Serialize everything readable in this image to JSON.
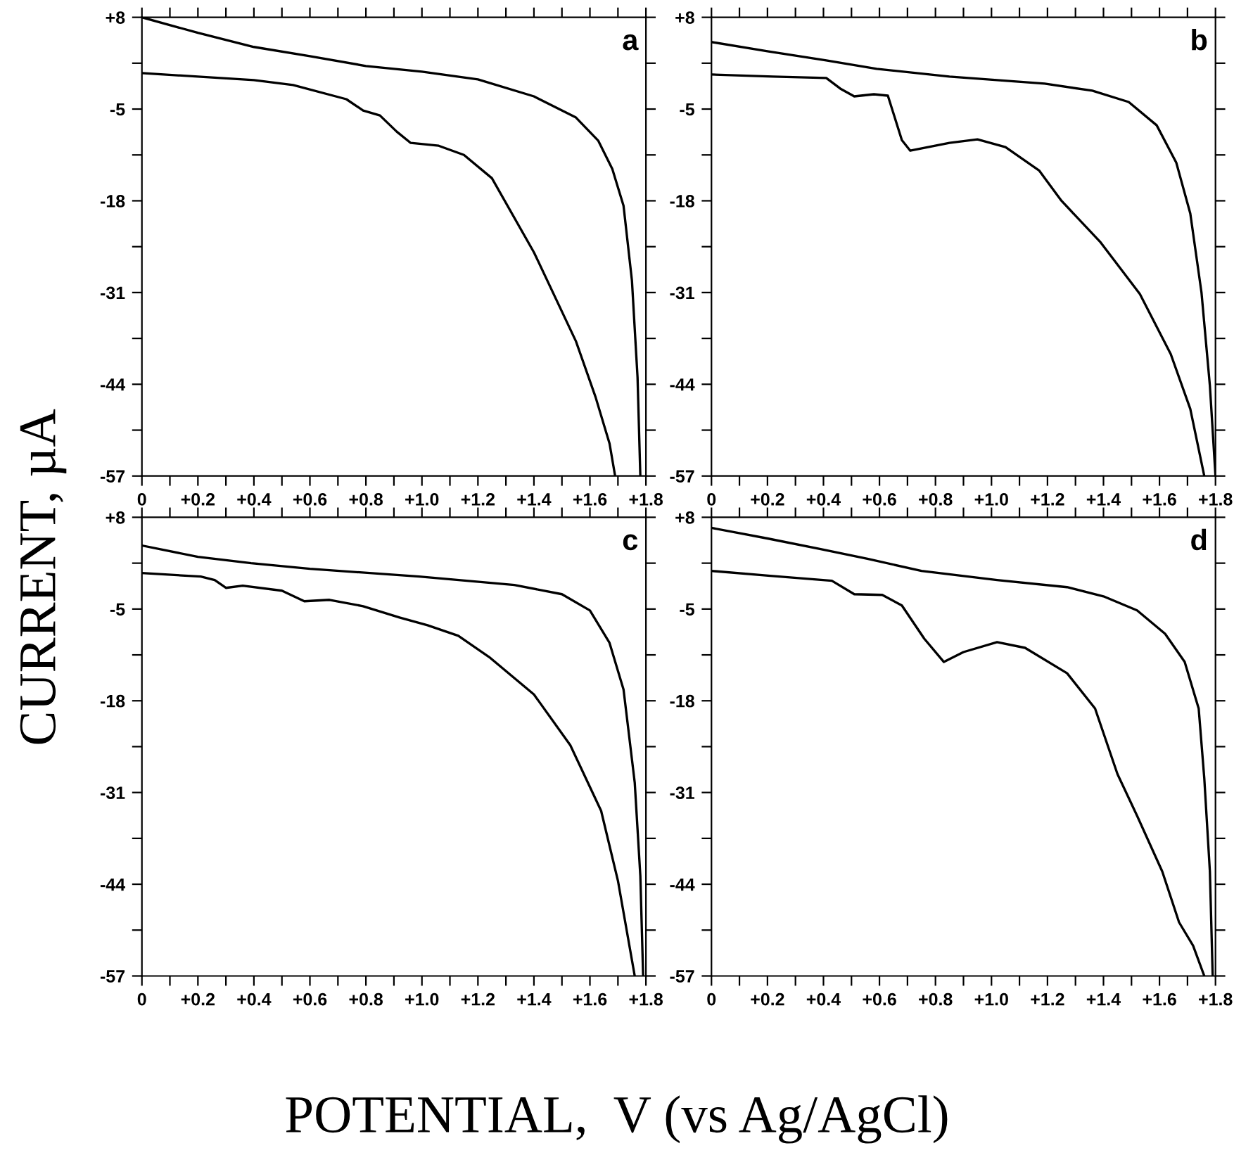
{
  "chart_data": [
    {
      "type": "line",
      "annotations": [
        "a"
      ],
      "ylabel": "CURRENT, µA",
      "xlim": [
        0,
        1.8
      ],
      "ylim": [
        -57,
        8
      ],
      "grid": false,
      "legend": false,
      "marker": "none",
      "line_style": "solid",
      "xticks": [
        {
          "value": 0,
          "label": "0"
        },
        {
          "value": 0.1,
          "label": null
        },
        {
          "value": 0.2,
          "label": "+0.2"
        },
        {
          "value": 0.3,
          "label": null
        },
        {
          "value": 0.4,
          "label": "+0.4"
        },
        {
          "value": 0.5,
          "label": null
        },
        {
          "value": 0.6,
          "label": "+0.6"
        },
        {
          "value": 0.7,
          "label": null
        },
        {
          "value": 0.8,
          "label": "+0.8"
        },
        {
          "value": 0.9,
          "label": null
        },
        {
          "value": 1.0,
          "label": "+1.0"
        },
        {
          "value": 1.1,
          "label": null
        },
        {
          "value": 1.2,
          "label": "+1.2"
        },
        {
          "value": 1.3,
          "label": null
        },
        {
          "value": 1.4,
          "label": "+1.4"
        },
        {
          "value": 1.5,
          "label": null
        },
        {
          "value": 1.6,
          "label": "+1.6"
        },
        {
          "value": 1.7,
          "label": null
        },
        {
          "value": 1.8,
          "label": "+1.8"
        }
      ],
      "yticks": [
        {
          "value": 8,
          "label": "+8"
        },
        {
          "value": 1.5,
          "label": null
        },
        -5,
        {
          "value": -11.5,
          "label": null
        },
        -18,
        {
          "value": -24.5,
          "label": null
        },
        -31,
        {
          "value": -37.5,
          "label": null
        },
        -44,
        {
          "value": -50.5,
          "label": null
        },
        -57
      ],
      "series": [
        {
          "color": "#000000",
          "x": [
            0,
            0.2,
            0.4,
            0.6,
            0.8,
            1.0,
            1.2,
            1.4,
            1.55,
            1.63,
            1.68,
            1.72,
            1.75,
            1.77,
            1.78
          ],
          "values": [
            8,
            5.8,
            3.8,
            2.5,
            1.1,
            0.3,
            -0.8,
            -3.2,
            -6.2,
            -9.5,
            -13.5,
            -18.7,
            -29.3,
            -43,
            -57
          ]
        },
        {
          "color": "#000000",
          "x": [
            0,
            0.2,
            0.4,
            0.54,
            0.73,
            0.79,
            0.85,
            0.91,
            0.96,
            1.06,
            1.15,
            1.25,
            1.4,
            1.55,
            1.62,
            1.67,
            1.69
          ],
          "values": [
            0.1,
            -0.4,
            -0.9,
            -1.6,
            -3.6,
            -5.2,
            -5.9,
            -8.2,
            -9.8,
            -10.2,
            -11.5,
            -14.8,
            -25.3,
            -37.9,
            -45.8,
            -52.4,
            -57
          ]
        }
      ]
    },
    {
      "type": "line",
      "annotations": [
        "b"
      ],
      "xlim": [
        0,
        1.8
      ],
      "ylim": [
        -57,
        8
      ],
      "grid": false,
      "legend": false,
      "marker": "none",
      "line_style": "solid",
      "xticks": [
        {
          "value": 0,
          "label": "0"
        },
        {
          "value": 0.1,
          "label": null
        },
        {
          "value": 0.2,
          "label": "+0.2"
        },
        {
          "value": 0.3,
          "label": null
        },
        {
          "value": 0.4,
          "label": "+0.4"
        },
        {
          "value": 0.5,
          "label": null
        },
        {
          "value": 0.6,
          "label": "+0.6"
        },
        {
          "value": 0.7,
          "label": null
        },
        {
          "value": 0.8,
          "label": "+0.8"
        },
        {
          "value": 0.9,
          "label": null
        },
        {
          "value": 1.0,
          "label": "+1.0"
        },
        {
          "value": 1.1,
          "label": null
        },
        {
          "value": 1.2,
          "label": "+1.2"
        },
        {
          "value": 1.3,
          "label": null
        },
        {
          "value": 1.4,
          "label": "+1.4"
        },
        {
          "value": 1.5,
          "label": null
        },
        {
          "value": 1.6,
          "label": "+1.6"
        },
        {
          "value": 1.7,
          "label": null
        },
        {
          "value": 1.8,
          "label": "+1.8"
        }
      ],
      "yticks": [
        {
          "value": 8,
          "label": "+8"
        },
        {
          "value": 1.5,
          "label": null
        },
        -5,
        {
          "value": -11.5,
          "label": null
        },
        -18,
        {
          "value": -24.5,
          "label": null
        },
        -31,
        {
          "value": -37.5,
          "label": null
        },
        -44,
        {
          "value": -50.5,
          "label": null
        },
        -57
      ],
      "series": [
        {
          "color": "#000000",
          "x": [
            0,
            0.2,
            0.41,
            0.59,
            0.85,
            1.19,
            1.36,
            1.49,
            1.59,
            1.66,
            1.71,
            1.75,
            1.78,
            1.8
          ],
          "values": [
            4.5,
            3.2,
            1.9,
            0.7,
            -0.4,
            -1.4,
            -2.4,
            -4.0,
            -7.3,
            -12.6,
            -19.8,
            -31,
            -44.2,
            -57
          ]
        },
        {
          "color": "#000000",
          "x": [
            0,
            0.22,
            0.41,
            0.46,
            0.51,
            0.58,
            0.63,
            0.68,
            0.71,
            0.85,
            0.95,
            1.05,
            1.17,
            1.25,
            1.39,
            1.53,
            1.64,
            1.71,
            1.76
          ],
          "values": [
            -0.1,
            -0.4,
            -0.6,
            -2.1,
            -3.2,
            -2.9,
            -3.1,
            -9.4,
            -10.9,
            -9.8,
            -9.3,
            -10.4,
            -13.7,
            -18,
            -23.9,
            -31.2,
            -39.7,
            -47.5,
            -57
          ]
        }
      ]
    },
    {
      "type": "line",
      "annotations": [
        "c"
      ],
      "xlabel": "POTENTIAL,  V (vs Ag/AgCl)",
      "xlim": [
        0,
        1.8
      ],
      "ylim": [
        -57,
        8
      ],
      "grid": false,
      "legend": false,
      "marker": "none",
      "line_style": "solid",
      "xticks": [
        {
          "value": 0,
          "label": "0"
        },
        {
          "value": 0.1,
          "label": null
        },
        {
          "value": 0.2,
          "label": "+0.2"
        },
        {
          "value": 0.3,
          "label": null
        },
        {
          "value": 0.4,
          "label": "+0.4"
        },
        {
          "value": 0.5,
          "label": null
        },
        {
          "value": 0.6,
          "label": "+0.6"
        },
        {
          "value": 0.7,
          "label": null
        },
        {
          "value": 0.8,
          "label": "+0.8"
        },
        {
          "value": 0.9,
          "label": null
        },
        {
          "value": 1.0,
          "label": "+1.0"
        },
        {
          "value": 1.1,
          "label": null
        },
        {
          "value": 1.2,
          "label": "+1.2"
        },
        {
          "value": 1.3,
          "label": null
        },
        {
          "value": 1.4,
          "label": "+1.4"
        },
        {
          "value": 1.5,
          "label": null
        },
        {
          "value": 1.6,
          "label": "+1.6"
        },
        {
          "value": 1.7,
          "label": null
        },
        {
          "value": 1.8,
          "label": "+1.8"
        }
      ],
      "yticks": [
        {
          "value": 8,
          "label": "+8"
        },
        {
          "value": 1.5,
          "label": null
        },
        -5,
        {
          "value": -11.5,
          "label": null
        },
        -18,
        {
          "value": -24.5,
          "label": null
        },
        -31,
        {
          "value": -37.5,
          "label": null
        },
        -44,
        {
          "value": -50.5,
          "label": null
        },
        -57
      ],
      "series": [
        {
          "color": "#000000",
          "x": [
            0,
            0.2,
            0.39,
            0.6,
            0.99,
            1.33,
            1.5,
            1.6,
            1.67,
            1.72,
            1.76,
            1.78,
            1.79
          ],
          "values": [
            4.0,
            2.4,
            1.5,
            0.7,
            -0.4,
            -1.6,
            -2.9,
            -5.2,
            -9.8,
            -16.4,
            -29.6,
            -42.8,
            -57
          ]
        },
        {
          "color": "#000000",
          "x": [
            0,
            0.21,
            0.26,
            0.3,
            0.36,
            0.5,
            0.58,
            0.67,
            0.79,
            0.92,
            1.02,
            1.13,
            1.24,
            1.4,
            1.53,
            1.64,
            1.7,
            1.76
          ],
          "values": [
            0.1,
            -0.4,
            -0.9,
            -2.0,
            -1.7,
            -2.4,
            -3.9,
            -3.7,
            -4.6,
            -6.2,
            -7.3,
            -8.8,
            -11.8,
            -17.1,
            -24.3,
            -33.6,
            -43.5,
            -57
          ]
        }
      ]
    },
    {
      "type": "line",
      "annotations": [
        "d"
      ],
      "xlim": [
        0,
        1.8
      ],
      "ylim": [
        -57,
        8
      ],
      "grid": false,
      "legend": false,
      "marker": "none",
      "line_style": "solid",
      "xticks": [
        {
          "value": 0,
          "label": "0"
        },
        {
          "value": 0.1,
          "label": null
        },
        {
          "value": 0.2,
          "label": "+0.2"
        },
        {
          "value": 0.3,
          "label": null
        },
        {
          "value": 0.4,
          "label": "+0.4"
        },
        {
          "value": 0.5,
          "label": null
        },
        {
          "value": 0.6,
          "label": "+0.6"
        },
        {
          "value": 0.7,
          "label": null
        },
        {
          "value": 0.8,
          "label": "+0.8"
        },
        {
          "value": 0.9,
          "label": null
        },
        {
          "value": 1.0,
          "label": "+1.0"
        },
        {
          "value": 1.1,
          "label": null
        },
        {
          "value": 1.2,
          "label": "+1.2"
        },
        {
          "value": 1.3,
          "label": null
        },
        {
          "value": 1.4,
          "label": "+1.4"
        },
        {
          "value": 1.5,
          "label": null
        },
        {
          "value": 1.6,
          "label": "+1.6"
        },
        {
          "value": 1.7,
          "label": null
        },
        {
          "value": 1.8,
          "label": "+1.8"
        }
      ],
      "yticks": [
        {
          "value": 8,
          "label": "+8"
        },
        {
          "value": 1.5,
          "label": null
        },
        -5,
        {
          "value": -11.5,
          "label": null
        },
        -18,
        {
          "value": -24.5,
          "label": null
        },
        -31,
        {
          "value": -37.5,
          "label": null
        },
        -44,
        {
          "value": -50.5,
          "label": null
        },
        -57
      ],
      "series": [
        {
          "color": "#000000",
          "x": [
            0,
            0.2,
            0.39,
            0.56,
            0.75,
            1.02,
            1.27,
            1.4,
            1.52,
            1.62,
            1.69,
            1.74,
            1.76,
            1.78,
            1.79
          ],
          "values": [
            6.5,
            5.0,
            3.5,
            2.1,
            0.4,
            -0.9,
            -1.9,
            -3.2,
            -5.2,
            -8.5,
            -12.5,
            -19.1,
            -29,
            -42.2,
            -57
          ]
        },
        {
          "color": "#000000",
          "x": [
            0,
            0.21,
            0.43,
            0.51,
            0.61,
            0.68,
            0.76,
            0.83,
            0.9,
            1.02,
            1.12,
            1.27,
            1.37,
            1.45,
            1.52,
            1.61,
            1.67,
            1.72,
            1.76
          ],
          "values": [
            0.4,
            -0.3,
            -1.0,
            -2.9,
            -3.0,
            -4.5,
            -9.2,
            -12.5,
            -11.1,
            -9.7,
            -10.5,
            -14.1,
            -19.1,
            -28.4,
            -34.3,
            -42.2,
            -49.4,
            -52.7,
            -57
          ]
        }
      ]
    }
  ]
}
